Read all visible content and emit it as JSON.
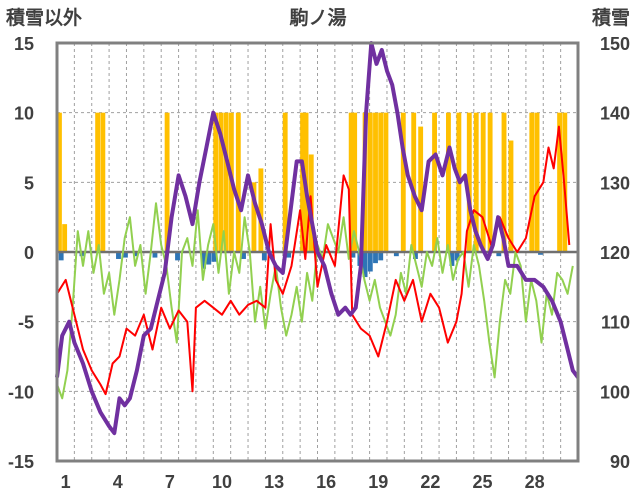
{
  "chart_data": {
    "type": "line",
    "title": "駒ノ湯",
    "ylabel_left": "積雪以外",
    "ylabel_right": "積雪",
    "x_ticks": [
      "1",
      "4",
      "7",
      "10",
      "13",
      "16",
      "19",
      "22",
      "25",
      "28"
    ],
    "x_range": [
      0,
      30
    ],
    "y_left": {
      "ticks": [
        "15",
        "10",
        "5",
        "0",
        "-5",
        "-10",
        "-15"
      ],
      "range": [
        -15,
        15
      ]
    },
    "y_right": {
      "ticks": [
        "150",
        "140",
        "130",
        "120",
        "110",
        "100",
        "90"
      ],
      "range": [
        90,
        150
      ]
    },
    "grid": true,
    "colors": {
      "frame": "#808080",
      "grid": "#a0a0a0",
      "zero": "#707070",
      "precip": "#ffc000",
      "depth_change": "#2e75b6",
      "max_temp": "#ff0000",
      "min_temp": "#92d050",
      "snow_depth": "#7030a0"
    },
    "precipitation_bars": [
      [
        0.0,
        10
      ],
      [
        0.3,
        2
      ],
      [
        2.2,
        10
      ],
      [
        2.5,
        10
      ],
      [
        6.2,
        10
      ],
      [
        9.0,
        10
      ],
      [
        9.3,
        10
      ],
      [
        9.6,
        10
      ],
      [
        9.9,
        10
      ],
      [
        10.3,
        10
      ],
      [
        11.2,
        5
      ],
      [
        11.6,
        6
      ],
      [
        13.0,
        10
      ],
      [
        14.0,
        10
      ],
      [
        14.2,
        10
      ],
      [
        14.5,
        7
      ],
      [
        16.8,
        10
      ],
      [
        17.0,
        10
      ],
      [
        17.6,
        10
      ],
      [
        17.9,
        10
      ],
      [
        18.2,
        10
      ],
      [
        18.5,
        10
      ],
      [
        18.8,
        10
      ],
      [
        19.8,
        10
      ],
      [
        20.4,
        10
      ],
      [
        20.8,
        9
      ],
      [
        21.6,
        10
      ],
      [
        22.4,
        10
      ],
      [
        23.0,
        10
      ],
      [
        23.6,
        10
      ],
      [
        24.0,
        10
      ],
      [
        24.4,
        10
      ],
      [
        24.8,
        10
      ],
      [
        25.6,
        10
      ],
      [
        26.0,
        8
      ],
      [
        27.2,
        10
      ],
      [
        27.5,
        10
      ],
      [
        28.8,
        10
      ],
      [
        29.1,
        10
      ]
    ],
    "snow_depth_change_bars": [
      [
        0.1,
        -0.6
      ],
      [
        1.3,
        -0.3
      ],
      [
        3.4,
        -0.5
      ],
      [
        3.8,
        -0.4
      ],
      [
        4.4,
        -0.3
      ],
      [
        5.5,
        -0.4
      ],
      [
        6.8,
        -0.6
      ],
      [
        8.3,
        -1.2
      ],
      [
        8.6,
        -0.9
      ],
      [
        8.9,
        -0.7
      ],
      [
        10.6,
        -0.5
      ],
      [
        11.8,
        -0.6
      ],
      [
        13.2,
        -0.4
      ],
      [
        16.9,
        -0.4
      ],
      [
        17.3,
        -1.0
      ],
      [
        17.6,
        -1.8
      ],
      [
        17.9,
        -1.4
      ],
      [
        18.2,
        -0.8
      ],
      [
        18.5,
        -0.6
      ],
      [
        19.4,
        -0.3
      ],
      [
        20.5,
        -0.5
      ],
      [
        22.6,
        -1.0
      ],
      [
        22.9,
        -0.6
      ],
      [
        25.3,
        -0.3
      ],
      [
        27.7,
        -0.2
      ]
    ],
    "max_temp": [
      [
        0.0,
        -3.0
      ],
      [
        0.5,
        -2.0
      ],
      [
        1.0,
        -4.5
      ],
      [
        1.5,
        -7.0
      ],
      [
        2.0,
        -8.5
      ],
      [
        2.5,
        -9.5
      ],
      [
        2.8,
        -10.2
      ],
      [
        3.2,
        -8.0
      ],
      [
        3.6,
        -7.5
      ],
      [
        4.0,
        -5.5
      ],
      [
        4.5,
        -6.0
      ],
      [
        5.0,
        -4.5
      ],
      [
        5.5,
        -7.0
      ],
      [
        6.0,
        -4.0
      ],
      [
        6.5,
        -5.5
      ],
      [
        7.0,
        -4.2
      ],
      [
        7.5,
        -5.0
      ],
      [
        7.8,
        -10.0
      ],
      [
        8.0,
        -4.0
      ],
      [
        8.5,
        -3.5
      ],
      [
        9.0,
        -4.0
      ],
      [
        9.5,
        -4.5
      ],
      [
        10.0,
        -3.5
      ],
      [
        10.5,
        -4.5
      ],
      [
        11.0,
        -3.8
      ],
      [
        11.5,
        -3.5
      ],
      [
        12.0,
        -4.0
      ],
      [
        12.3,
        2.0
      ],
      [
        12.6,
        -2.0
      ],
      [
        13.0,
        -3.0
      ],
      [
        13.5,
        -1.0
      ],
      [
        14.0,
        3.0
      ],
      [
        14.3,
        -0.5
      ],
      [
        14.6,
        4.0
      ],
      [
        15.0,
        -2.5
      ],
      [
        15.5,
        0.5
      ],
      [
        16.0,
        -1.0
      ],
      [
        16.5,
        5.5
      ],
      [
        16.8,
        4.5
      ],
      [
        17.0,
        -4.5
      ],
      [
        17.5,
        -5.5
      ],
      [
        18.0,
        -6.0
      ],
      [
        18.5,
        -7.5
      ],
      [
        19.0,
        -5.0
      ],
      [
        19.5,
        -2.0
      ],
      [
        20.0,
        -3.5
      ],
      [
        20.5,
        -2.0
      ],
      [
        21.0,
        -5.0
      ],
      [
        21.5,
        -3.0
      ],
      [
        22.0,
        -4.0
      ],
      [
        22.5,
        -6.5
      ],
      [
        23.0,
        -5.0
      ],
      [
        23.3,
        -3.0
      ],
      [
        23.6,
        1.5
      ],
      [
        24.0,
        3.0
      ],
      [
        24.5,
        2.5
      ],
      [
        25.0,
        0.5
      ],
      [
        25.5,
        2.5
      ],
      [
        26.0,
        1.0
      ],
      [
        26.5,
        0.0
      ],
      [
        27.0,
        1.0
      ],
      [
        27.5,
        4.0
      ],
      [
        28.0,
        5.0
      ],
      [
        28.3,
        7.5
      ],
      [
        28.6,
        6.0
      ],
      [
        28.9,
        9.0
      ],
      [
        29.2,
        5.0
      ],
      [
        29.5,
        0.5
      ]
    ],
    "min_temp": [
      [
        0.0,
        -9.5
      ],
      [
        0.3,
        -10.5
      ],
      [
        0.6,
        -8.5
      ],
      [
        0.9,
        -4.0
      ],
      [
        1.2,
        1.5
      ],
      [
        1.5,
        -1.0
      ],
      [
        1.8,
        1.5
      ],
      [
        2.1,
        -1.5
      ],
      [
        2.4,
        0.5
      ],
      [
        2.7,
        -3.0
      ],
      [
        3.0,
        -1.5
      ],
      [
        3.3,
        -4.5
      ],
      [
        3.6,
        -2.0
      ],
      [
        3.9,
        1.0
      ],
      [
        4.2,
        2.5
      ],
      [
        4.5,
        -1.0
      ],
      [
        4.8,
        0.5
      ],
      [
        5.1,
        -3.0
      ],
      [
        5.4,
        0.0
      ],
      [
        5.7,
        3.5
      ],
      [
        6.0,
        0.5
      ],
      [
        6.3,
        -1.0
      ],
      [
        6.6,
        -4.0
      ],
      [
        6.9,
        -6.5
      ],
      [
        7.2,
        0.0
      ],
      [
        7.5,
        1.0
      ],
      [
        7.8,
        -1.0
      ],
      [
        8.1,
        3.0
      ],
      [
        8.4,
        -2.0
      ],
      [
        8.7,
        0.5
      ],
      [
        9.0,
        2.0
      ],
      [
        9.3,
        -1.5
      ],
      [
        9.6,
        1.5
      ],
      [
        9.9,
        -3.0
      ],
      [
        10.2,
        0.0
      ],
      [
        10.5,
        -1.5
      ],
      [
        10.8,
        2.5
      ],
      [
        11.1,
        0.0
      ],
      [
        11.4,
        -5.0
      ],
      [
        11.7,
        -2.5
      ],
      [
        12.0,
        -5.5
      ],
      [
        12.3,
        -3.0
      ],
      [
        12.6,
        -1.0
      ],
      [
        12.9,
        -4.0
      ],
      [
        13.2,
        -6.0
      ],
      [
        13.5,
        -4.5
      ],
      [
        13.8,
        -2.5
      ],
      [
        14.1,
        -5.0
      ],
      [
        14.4,
        -1.5
      ],
      [
        14.7,
        -3.5
      ],
      [
        15.0,
        0.5
      ],
      [
        15.3,
        -0.5
      ],
      [
        15.6,
        2.0
      ],
      [
        15.9,
        1.0
      ],
      [
        16.2,
        0.0
      ],
      [
        16.5,
        2.5
      ],
      [
        16.8,
        -0.5
      ],
      [
        17.1,
        1.5
      ],
      [
        17.4,
        0.0
      ],
      [
        17.7,
        -2.0
      ],
      [
        18.0,
        -3.5
      ],
      [
        18.3,
        -2.0
      ],
      [
        18.6,
        -4.0
      ],
      [
        18.9,
        -5.0
      ],
      [
        19.2,
        -6.0
      ],
      [
        19.5,
        -4.5
      ],
      [
        19.8,
        -1.5
      ],
      [
        20.1,
        -3.0
      ],
      [
        20.4,
        0.5
      ],
      [
        20.7,
        -1.0
      ],
      [
        21.0,
        -2.5
      ],
      [
        21.3,
        0.0
      ],
      [
        21.6,
        -1.0
      ],
      [
        21.9,
        1.0
      ],
      [
        22.2,
        -1.5
      ],
      [
        22.5,
        0.5
      ],
      [
        22.8,
        -2.0
      ],
      [
        23.1,
        -0.5
      ],
      [
        23.4,
        0.0
      ],
      [
        23.7,
        -2.5
      ],
      [
        24.0,
        0.5
      ],
      [
        24.3,
        -1.0
      ],
      [
        24.6,
        -3.5
      ],
      [
        24.9,
        -6.5
      ],
      [
        25.2,
        -9.0
      ],
      [
        25.5,
        -5.0
      ],
      [
        25.8,
        -2.0
      ],
      [
        26.1,
        -3.0
      ],
      [
        26.4,
        0.0
      ],
      [
        26.7,
        -1.0
      ],
      [
        27.0,
        -5.0
      ],
      [
        27.3,
        -2.0
      ],
      [
        27.6,
        -3.5
      ],
      [
        27.9,
        -6.5
      ],
      [
        28.2,
        -3.0
      ],
      [
        28.5,
        -4.5
      ],
      [
        28.8,
        -1.5
      ],
      [
        29.1,
        -2.0
      ],
      [
        29.4,
        -3.0
      ],
      [
        29.7,
        -1.0
      ]
    ],
    "snow_depth": [
      [
        0.0,
        102
      ],
      [
        0.3,
        108
      ],
      [
        0.7,
        110
      ],
      [
        1.0,
        107
      ],
      [
        1.5,
        104
      ],
      [
        2.0,
        100
      ],
      [
        2.5,
        97
      ],
      [
        3.0,
        95
      ],
      [
        3.3,
        94
      ],
      [
        3.6,
        99
      ],
      [
        3.9,
        98
      ],
      [
        4.2,
        99
      ],
      [
        4.6,
        103
      ],
      [
        5.0,
        108
      ],
      [
        5.4,
        109
      ],
      [
        5.8,
        113
      ],
      [
        6.2,
        117
      ],
      [
        6.6,
        125
      ],
      [
        7.0,
        131
      ],
      [
        7.4,
        128
      ],
      [
        7.8,
        124
      ],
      [
        8.2,
        130
      ],
      [
        8.6,
        135
      ],
      [
        9.0,
        140
      ],
      [
        9.4,
        137
      ],
      [
        9.8,
        133
      ],
      [
        10.2,
        129
      ],
      [
        10.6,
        126
      ],
      [
        11.0,
        131
      ],
      [
        11.4,
        127
      ],
      [
        11.8,
        124
      ],
      [
        12.2,
        120
      ],
      [
        12.6,
        118
      ],
      [
        13.0,
        117
      ],
      [
        13.4,
        125
      ],
      [
        13.8,
        133
      ],
      [
        14.1,
        133
      ],
      [
        14.4,
        128
      ],
      [
        14.7,
        124
      ],
      [
        15.0,
        120
      ],
      [
        15.4,
        118
      ],
      [
        15.8,
        114
      ],
      [
        16.2,
        111
      ],
      [
        16.6,
        112
      ],
      [
        16.9,
        111
      ],
      [
        17.2,
        112
      ],
      [
        17.5,
        118
      ],
      [
        17.8,
        140
      ],
      [
        18.1,
        150
      ],
      [
        18.4,
        147
      ],
      [
        18.7,
        149
      ],
      [
        19.0,
        146
      ],
      [
        19.3,
        144
      ],
      [
        19.6,
        140
      ],
      [
        19.9,
        135
      ],
      [
        20.2,
        131
      ],
      [
        20.6,
        128
      ],
      [
        21.0,
        126
      ],
      [
        21.4,
        133
      ],
      [
        21.8,
        134
      ],
      [
        22.2,
        131
      ],
      [
        22.6,
        135
      ],
      [
        22.9,
        132
      ],
      [
        23.2,
        130
      ],
      [
        23.5,
        131
      ],
      [
        23.8,
        126
      ],
      [
        24.1,
        123
      ],
      [
        24.4,
        121
      ],
      [
        24.8,
        119
      ],
      [
        25.1,
        121
      ],
      [
        25.4,
        125
      ],
      [
        25.7,
        122
      ],
      [
        26.0,
        118
      ],
      [
        26.5,
        118
      ],
      [
        27.0,
        116
      ],
      [
        27.5,
        116
      ],
      [
        28.0,
        115
      ],
      [
        28.5,
        113
      ],
      [
        29.0,
        110
      ],
      [
        29.4,
        106
      ],
      [
        29.7,
        103
      ],
      [
        30.0,
        102
      ]
    ]
  }
}
